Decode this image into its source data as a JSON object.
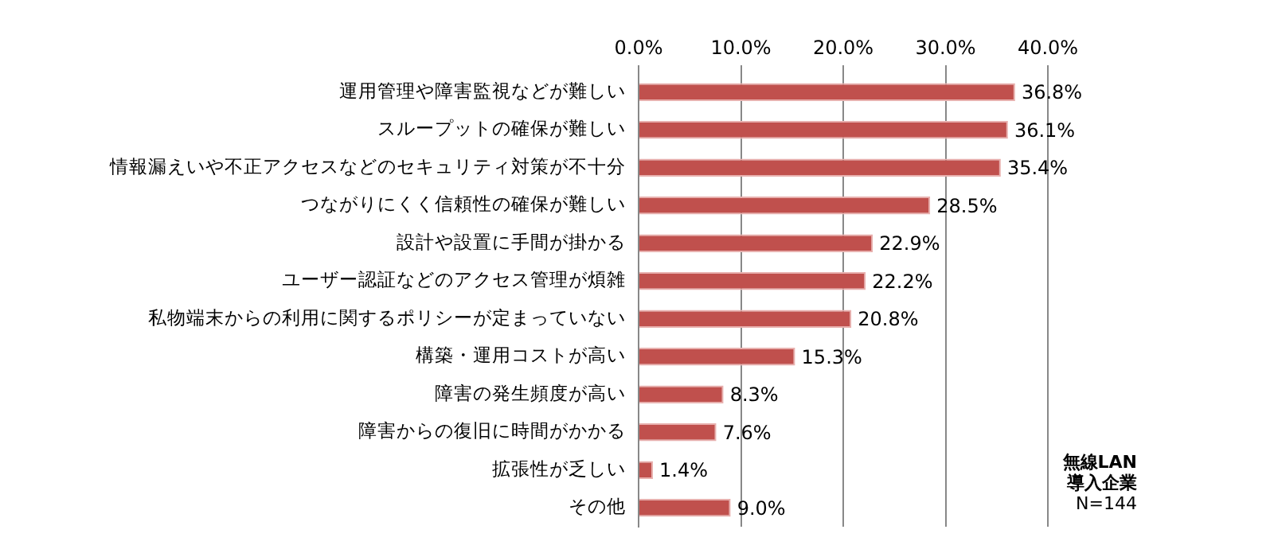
{
  "chart_data": {
    "type": "bar",
    "orientation": "horizontal",
    "categories": [
      "運用管理や障害監視などが難しい",
      "スループットの確保が難しい",
      "情報漏えいや不正アクセスなどのセキュリティ対策が不十分",
      "つながりにくく信頼性の確保が難しい",
      "設計や設置に手間が掛かる",
      "ユーザー認証などのアクセス管理が煩雑",
      "私物端末からの利用に関するポリシーが定まっていない",
      "構築・運用コストが高い",
      "障害の発生頻度が高い",
      "障害からの復旧に時間がかかる",
      "拡張性が乏しい",
      "その他"
    ],
    "values": [
      36.8,
      36.1,
      35.4,
      28.5,
      22.9,
      22.2,
      20.8,
      15.3,
      8.3,
      7.6,
      1.4,
      9.0
    ],
    "value_labels": [
      "36.8%",
      "36.1%",
      "35.4%",
      "28.5%",
      "22.9%",
      "22.2%",
      "20.8%",
      "15.3%",
      "8.3%",
      "7.6%",
      "1.4%",
      "9.0%"
    ],
    "color": "#c0504d",
    "xlim": [
      0,
      40
    ],
    "xticks": [
      {
        "value": 0,
        "label": "0.0%"
      },
      {
        "value": 10,
        "label": "10.0%"
      },
      {
        "value": 20,
        "label": "20.0%"
      },
      {
        "value": 30,
        "label": "30.0%"
      },
      {
        "value": 40,
        "label": "40.0%"
      }
    ],
    "grid": "x",
    "legend": false,
    "annotations": [
      "無線LAN",
      "導入企業",
      "N=144"
    ]
  }
}
